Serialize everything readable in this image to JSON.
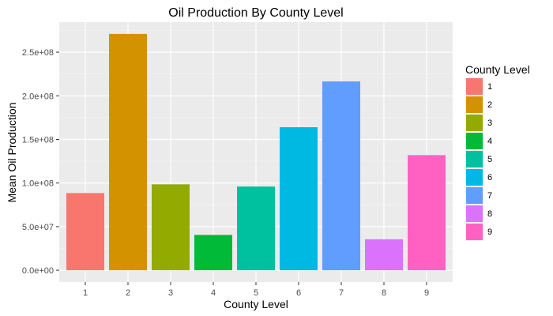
{
  "chart_data": {
    "type": "bar",
    "title": "Oil Production By County Level",
    "xlabel": "County Level",
    "ylabel": "Mean Oil Production",
    "categories": [
      "1",
      "2",
      "3",
      "4",
      "5",
      "6",
      "7",
      "8",
      "9"
    ],
    "values": [
      88500000,
      271000000,
      98500000,
      40500000,
      96000000,
      164000000,
      216500000,
      35500000,
      132000000
    ],
    "colors": [
      "#F8766D",
      "#D39200",
      "#93AA00",
      "#00BA38",
      "#00C19F",
      "#00B9E3",
      "#619CFF",
      "#DB72FB",
      "#FF61C3"
    ],
    "ylim": [
      -13500000,
      284500000
    ],
    "yticks": [
      0,
      50000000,
      100000000,
      150000000,
      200000000,
      250000000
    ],
    "ytick_labels": [
      "0.0e+00",
      "5.0e+07",
      "1.0e+08",
      "1.5e+08",
      "2.0e+08",
      "2.5e+08"
    ],
    "grid": true,
    "legend": {
      "title": "County Level",
      "position": "right",
      "entries": [
        "1",
        "2",
        "3",
        "4",
        "5",
        "6",
        "7",
        "8",
        "9"
      ]
    }
  }
}
